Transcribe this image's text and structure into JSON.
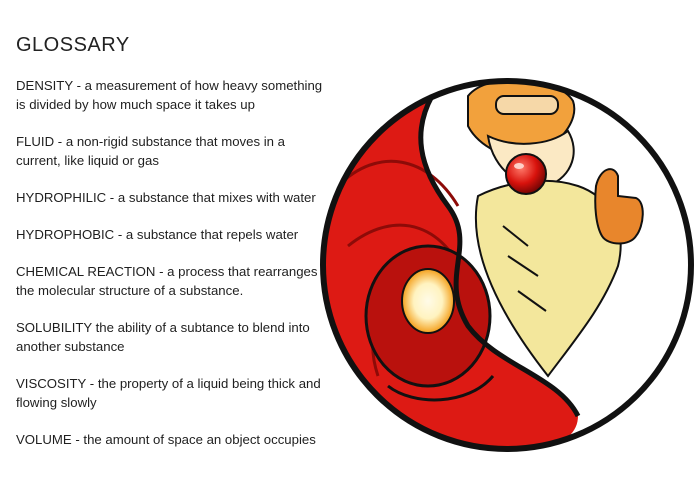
{
  "title": "GLOSSARY",
  "entries": [
    "DENSITY - a measurement of how heavy something is divided by how much space it takes up",
    "FLUID - a non-rigid substance that moves in a current, like liquid or gas",
    "HYDROPHILIC - a substance that mixes with water",
    "HYDROPHOBIC - a substance that repels water",
    "CHEMICAL REACTION - a process that rearranges the molecular structure of a substance.",
    "SOLUBILITY the ability of a subtance to blend into another substance",
    "VISCOSITY - the property of a liquid being thick and flowing slowly",
    "VOLUME - the amount of space an object occupies"
  ],
  "illustration": {
    "colors": {
      "red": "#dd1a14",
      "dark_red": "#9e0d0a",
      "outline": "#111111",
      "hair": "#e8842a",
      "coat": "#f2e6a0"
    }
  }
}
